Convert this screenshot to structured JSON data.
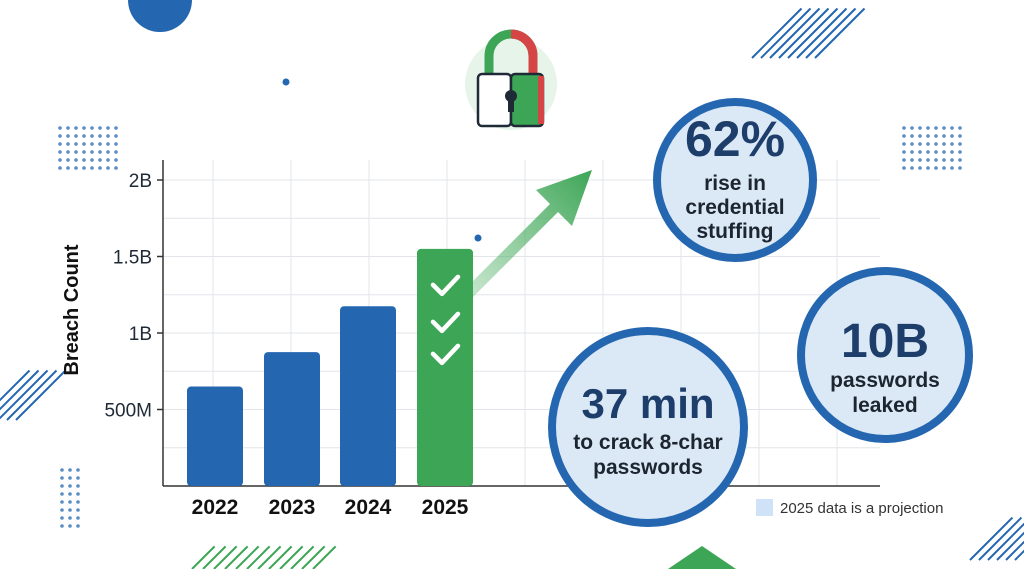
{
  "chart_data": {
    "type": "bar",
    "categories": [
      "2022",
      "2023",
      "2024",
      "2025"
    ],
    "values": [
      650000000,
      875000000,
      1175000000,
      1550000000
    ],
    "projected": [
      false,
      false,
      false,
      true
    ],
    "ylabel": "Breach Count",
    "ylim": [
      0,
      2000000000
    ],
    "yticks": [
      {
        "value": 500000000,
        "label": "500M"
      },
      {
        "value": 1000000000,
        "label": "1B"
      },
      {
        "value": 1500000000,
        "label": "1.5B"
      },
      {
        "value": 2000000000,
        "label": "2B"
      }
    ],
    "grid": true,
    "colors": {
      "actual": "#2466b0",
      "projected": "#3da556"
    }
  },
  "stats": [
    {
      "value": "62%",
      "lines": [
        "rise in",
        "credential",
        "stuffing"
      ]
    },
    {
      "value": "10B",
      "lines": [
        "passwords",
        "leaked"
      ]
    },
    {
      "value": "37 min",
      "lines": [
        "to crack 8-char",
        "passwords"
      ]
    }
  ],
  "note": "2025 data is a projection",
  "icons": [
    "padlock-icon",
    "trend-arrow-icon",
    "checkmark-icon"
  ],
  "colors": {
    "circle_border": "#2466b0",
    "circle_fill": "#dbe9f6",
    "arrow": "#4caf62",
    "lock_red": "#d64545",
    "lock_green": "#3da556"
  }
}
